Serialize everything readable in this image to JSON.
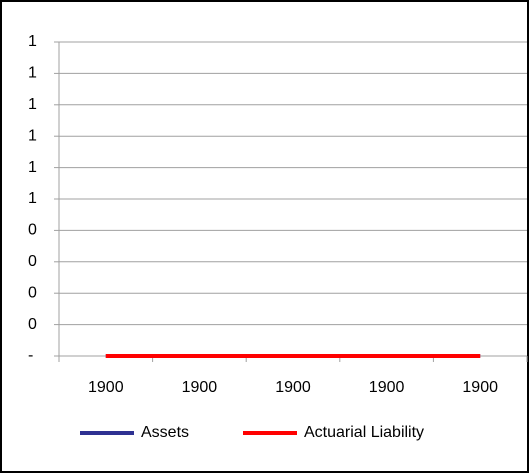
{
  "chart_data": {
    "type": "line",
    "categories": [
      "1900",
      "1900",
      "1900",
      "1900",
      "1900"
    ],
    "series": [
      {
        "name": "Assets",
        "color": "#2e3192",
        "values": [
          0,
          0,
          0,
          0,
          0
        ]
      },
      {
        "name": "Actuarial Liability",
        "color": "#ff0000",
        "values": [
          0,
          0,
          0,
          0,
          0
        ]
      }
    ],
    "ylim": [
      0,
      1
    ],
    "yticks": [
      {
        "value": 0,
        "label": "-"
      },
      {
        "value": 0.1,
        "label": "0"
      },
      {
        "value": 0.2,
        "label": "0"
      },
      {
        "value": 0.3,
        "label": "0"
      },
      {
        "value": 0.4,
        "label": "0"
      },
      {
        "value": 0.5,
        "label": "1"
      },
      {
        "value": 0.6,
        "label": "1"
      },
      {
        "value": 0.7,
        "label": "1"
      },
      {
        "value": 0.8,
        "label": "1"
      },
      {
        "value": 0.9,
        "label": "1"
      },
      1
    ],
    "grid": true,
    "legend": "bottom"
  }
}
